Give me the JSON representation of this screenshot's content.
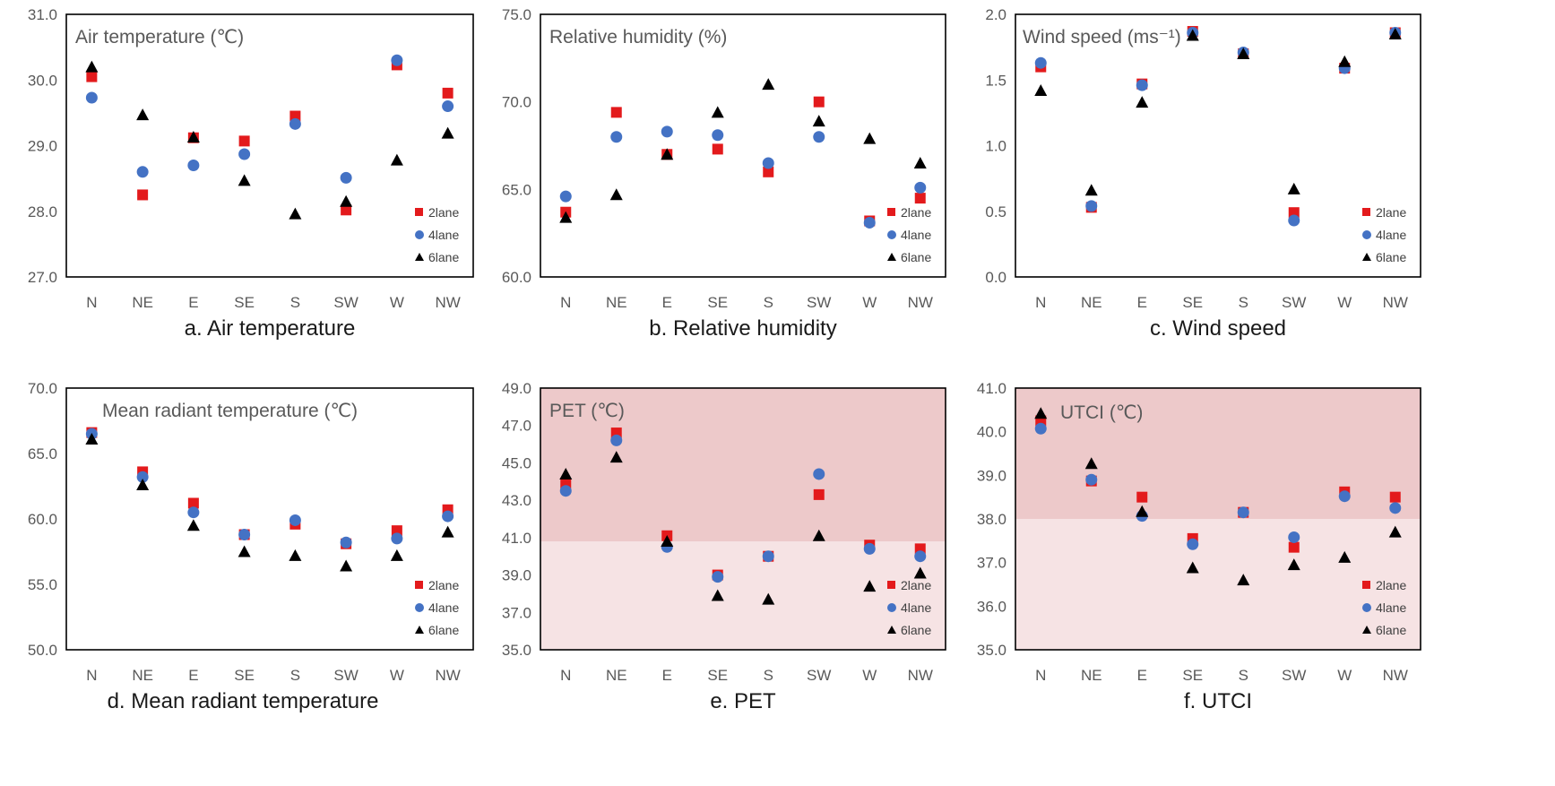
{
  "colors": {
    "2lane": "#e31a1c",
    "4lane": "#4472c4",
    "6lane": "#000000",
    "hot_zone": "#edc9ca",
    "warm_zone": "#f6e3e4"
  },
  "chart_data": [
    {
      "type": "scatter",
      "inner_title": "Air temperature (℃)",
      "caption": "a. Air temperature",
      "categories": [
        "N",
        "NE",
        "E",
        "SE",
        "S",
        "SW",
        "W",
        "NW"
      ],
      "ylim": [
        27.0,
        31.0
      ],
      "yticks": [
        "27.0",
        "28.0",
        "29.0",
        "30.0",
        "31.0"
      ],
      "legend_position": "bottom-right",
      "series": [
        {
          "name": "2lane",
          "values": [
            30.05,
            28.25,
            29.12,
            29.07,
            29.45,
            28.02,
            30.23,
            29.8
          ]
        },
        {
          "name": "4lane",
          "values": [
            29.73,
            28.6,
            28.7,
            28.87,
            29.33,
            28.51,
            30.3,
            29.6
          ]
        },
        {
          "name": "6lane",
          "values": [
            30.2,
            29.47,
            29.13,
            28.47,
            27.96,
            28.15,
            28.78,
            29.19
          ]
        }
      ]
    },
    {
      "type": "scatter",
      "inner_title": "Relative humidity (%)",
      "caption": "b. Relative humidity",
      "categories": [
        "N",
        "NE",
        "E",
        "SE",
        "S",
        "SW",
        "W",
        "NW"
      ],
      "ylim": [
        60.0,
        75.0
      ],
      "yticks": [
        "60.0",
        "65.0",
        "70.0",
        "75.0"
      ],
      "legend_position": "bottom-right",
      "series": [
        {
          "name": "2lane",
          "values": [
            63.7,
            69.4,
            67.0,
            67.3,
            66.0,
            70.0,
            63.2,
            64.5
          ]
        },
        {
          "name": "4lane",
          "values": [
            64.6,
            68.0,
            68.3,
            68.1,
            66.5,
            68.0,
            63.1,
            65.1
          ]
        },
        {
          "name": "6lane",
          "values": [
            63.4,
            64.7,
            67.0,
            69.4,
            71.0,
            68.9,
            67.9,
            66.5
          ]
        }
      ]
    },
    {
      "type": "scatter",
      "inner_title": "Wind speed (ms⁻¹)",
      "caption": "c. Wind speed",
      "categories": [
        "N",
        "NE",
        "E",
        "SE",
        "S",
        "SW",
        "W",
        "NW"
      ],
      "ylim": [
        0.0,
        2.0
      ],
      "yticks": [
        "0.0",
        "0.5",
        "1.0",
        "1.5",
        "2.0"
      ],
      "legend_position": "bottom-right",
      "series": [
        {
          "name": "2lane",
          "values": [
            1.6,
            0.53,
            1.47,
            1.87,
            1.7,
            0.49,
            1.59,
            1.86
          ]
        },
        {
          "name": "4lane",
          "values": [
            1.63,
            0.54,
            1.46,
            1.86,
            1.71,
            0.43,
            1.59,
            1.86
          ]
        },
        {
          "name": "6lane",
          "values": [
            1.42,
            0.66,
            1.33,
            1.84,
            1.7,
            0.67,
            1.64,
            1.85
          ]
        }
      ]
    },
    {
      "type": "scatter",
      "inner_title": "Mean radiant temperature (℃)",
      "caption": "d. Mean radiant temperature",
      "categories": [
        "N",
        "NE",
        "E",
        "SE",
        "S",
        "SW",
        "W",
        "NW"
      ],
      "ylim": [
        50.0,
        70.0
      ],
      "yticks": [
        "50.0",
        "55.0",
        "60.0",
        "65.0",
        "70.0"
      ],
      "legend_position": "bottom-right",
      "series": [
        {
          "name": "2lane",
          "values": [
            66.6,
            63.6,
            61.2,
            58.8,
            59.6,
            58.1,
            59.1,
            60.7
          ]
        },
        {
          "name": "4lane",
          "values": [
            66.5,
            63.2,
            60.5,
            58.8,
            59.9,
            58.2,
            58.5,
            60.2
          ]
        },
        {
          "name": "6lane",
          "values": [
            66.1,
            62.6,
            59.5,
            57.5,
            57.2,
            56.4,
            57.2,
            59.0
          ]
        }
      ]
    },
    {
      "type": "scatter",
      "inner_title": "PET (℃)",
      "caption": "e. PET",
      "categories": [
        "N",
        "NE",
        "E",
        "SE",
        "S",
        "SW",
        "W",
        "NW"
      ],
      "ylim": [
        35.0,
        49.0
      ],
      "yticks": [
        "35.0",
        "37.0",
        "39.0",
        "41.0",
        "43.0",
        "45.0",
        "47.0",
        "49.0"
      ],
      "legend_position": "bottom-right",
      "background_bands": [
        {
          "from": 35.0,
          "to": 40.8,
          "color": "warm_zone"
        },
        {
          "from": 40.8,
          "to": 49.0,
          "color": "hot_zone"
        }
      ],
      "series": [
        {
          "name": "2lane",
          "values": [
            43.9,
            46.6,
            41.1,
            39.0,
            40.0,
            43.3,
            40.6,
            40.4
          ]
        },
        {
          "name": "4lane",
          "values": [
            43.5,
            46.2,
            40.5,
            38.9,
            40.0,
            44.4,
            40.4,
            40.0
          ]
        },
        {
          "name": "6lane",
          "values": [
            44.4,
            45.3,
            40.8,
            37.9,
            37.7,
            41.1,
            38.4,
            39.1
          ]
        }
      ]
    },
    {
      "type": "scatter",
      "inner_title": "UTCI (℃)",
      "caption": "f. UTCI",
      "categories": [
        "N",
        "NE",
        "E",
        "SE",
        "S",
        "SW",
        "W",
        "NW"
      ],
      "ylim": [
        35.0,
        41.0
      ],
      "yticks": [
        "35.0",
        "36.0",
        "37.0",
        "38.0",
        "39.0",
        "40.0",
        "41.0"
      ],
      "legend_position": "bottom-right",
      "background_bands": [
        {
          "from": 35.0,
          "to": 38.0,
          "color": "warm_zone"
        },
        {
          "from": 38.0,
          "to": 41.0,
          "color": "hot_zone"
        }
      ],
      "series": [
        {
          "name": "2lane",
          "values": [
            40.25,
            38.87,
            38.5,
            37.55,
            38.15,
            37.35,
            38.62,
            38.5
          ]
        },
        {
          "name": "4lane",
          "values": [
            40.07,
            38.9,
            38.07,
            37.42,
            38.15,
            37.58,
            38.52,
            38.25
          ]
        },
        {
          "name": "6lane",
          "values": [
            40.42,
            39.27,
            38.17,
            36.88,
            36.6,
            36.95,
            37.12,
            37.7
          ]
        }
      ]
    }
  ]
}
